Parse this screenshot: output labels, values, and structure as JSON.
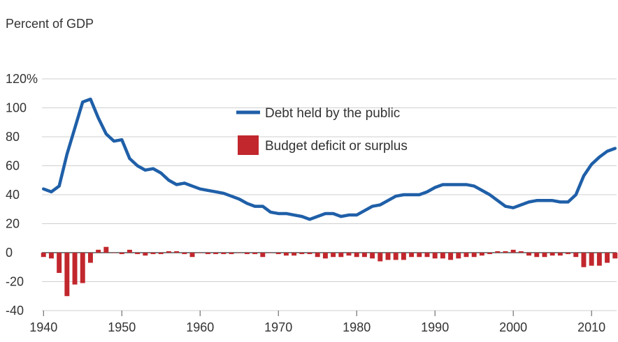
{
  "chart_data": {
    "type": "line",
    "ylabel": "Percent of GDP",
    "ylim": [
      -40,
      120
    ],
    "y_ticks": [
      "120%",
      "100",
      "80",
      "60",
      "40",
      "20",
      "0",
      "-20",
      "-40"
    ],
    "y_tick_values": [
      120,
      100,
      80,
      60,
      40,
      20,
      0,
      -20,
      -40
    ],
    "xlim": [
      1940,
      2013
    ],
    "x_ticks": [
      "1940",
      "1950",
      "1960",
      "1970",
      "1980",
      "1990",
      "2000",
      "2010"
    ],
    "x_tick_values": [
      1940,
      1950,
      1960,
      1970,
      1980,
      1990,
      2000,
      2010
    ],
    "grid": true,
    "legend_placement": "upper-center",
    "series": [
      {
        "name": "Debt held by the public",
        "kind": "line",
        "color": "#1f5fa8",
        "x": [
          1940,
          1941,
          1942,
          1943,
          1944,
          1945,
          1946,
          1947,
          1948,
          1949,
          1950,
          1951,
          1952,
          1953,
          1954,
          1955,
          1956,
          1957,
          1958,
          1959,
          1960,
          1961,
          1962,
          1963,
          1964,
          1965,
          1966,
          1967,
          1968,
          1969,
          1970,
          1971,
          1972,
          1973,
          1974,
          1975,
          1976,
          1977,
          1978,
          1979,
          1980,
          1981,
          1982,
          1983,
          1984,
          1985,
          1986,
          1987,
          1988,
          1989,
          1990,
          1991,
          1992,
          1993,
          1994,
          1995,
          1996,
          1997,
          1998,
          1999,
          2000,
          2001,
          2002,
          2003,
          2004,
          2005,
          2006,
          2007,
          2008,
          2009,
          2010,
          2011,
          2012,
          2013
        ],
        "values": [
          44,
          42,
          46,
          68,
          86,
          104,
          106,
          93,
          82,
          77,
          78,
          65,
          60,
          57,
          58,
          55,
          50,
          47,
          48,
          46,
          44,
          43,
          42,
          41,
          39,
          37,
          34,
          32,
          32,
          28,
          27,
          27,
          26,
          25,
          23,
          25,
          27,
          27,
          25,
          26,
          26,
          29,
          32,
          33,
          36,
          39,
          40,
          40,
          40,
          42,
          45,
          47,
          47,
          47,
          47,
          46,
          43,
          40,
          36,
          32,
          31,
          33,
          35,
          36,
          36,
          36,
          35,
          35,
          40,
          53,
          61,
          66,
          70,
          72
        ]
      },
      {
        "name": "Budget deficit or surplus",
        "kind": "bar",
        "color": "#c1272d",
        "x": [
          1940,
          1941,
          1942,
          1943,
          1944,
          1945,
          1946,
          1947,
          1948,
          1949,
          1950,
          1951,
          1952,
          1953,
          1954,
          1955,
          1956,
          1957,
          1958,
          1959,
          1960,
          1961,
          1962,
          1963,
          1964,
          1965,
          1966,
          1967,
          1968,
          1969,
          1970,
          1971,
          1972,
          1973,
          1974,
          1975,
          1976,
          1977,
          1978,
          1979,
          1980,
          1981,
          1982,
          1983,
          1984,
          1985,
          1986,
          1987,
          1988,
          1989,
          1990,
          1991,
          1992,
          1993,
          1994,
          1995,
          1996,
          1997,
          1998,
          1999,
          2000,
          2001,
          2002,
          2003,
          2004,
          2005,
          2006,
          2007,
          2008,
          2009,
          2010,
          2011,
          2012,
          2013
        ],
        "values": [
          -3,
          -4,
          -14,
          -30,
          -22,
          -21,
          -7,
          2,
          4,
          0,
          -1,
          2,
          -1,
          -2,
          -1,
          -1,
          1,
          1,
          -1,
          -3,
          0,
          -1,
          -1,
          -1,
          -1,
          0,
          -1,
          -1,
          -3,
          0,
          -1,
          -2,
          -2,
          -1,
          -1,
          -3,
          -4,
          -3,
          -3,
          -2,
          -3,
          -3,
          -4,
          -6,
          -5,
          -5,
          -5,
          -3,
          -3,
          -3,
          -4,
          -4,
          -5,
          -4,
          -3,
          -3,
          -2,
          -1,
          1,
          1,
          2,
          1,
          -2,
          -3,
          -3,
          -2,
          -2,
          -1,
          -3,
          -10,
          -9,
          -9,
          -7,
          -4
        ]
      }
    ]
  }
}
